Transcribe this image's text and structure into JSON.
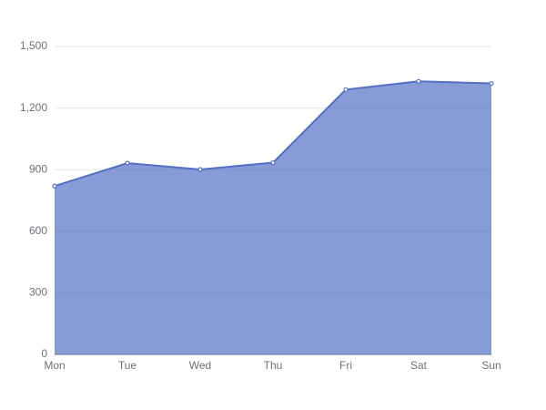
{
  "chart_data": {
    "type": "line",
    "area": true,
    "categories": [
      "Mon",
      "Tue",
      "Wed",
      "Thu",
      "Fri",
      "Sat",
      "Sun"
    ],
    "values": [
      820,
      932,
      901,
      934,
      1290,
      1330,
      1320
    ],
    "color": "#5470c6",
    "ylim": [
      0,
      1500
    ],
    "yticks": [
      0,
      300,
      600,
      900,
      {
        "value": 1200,
        "label": "1,200"
      },
      {
        "value": 1500,
        "label": "1,500"
      }
    ],
    "grid": true
  }
}
